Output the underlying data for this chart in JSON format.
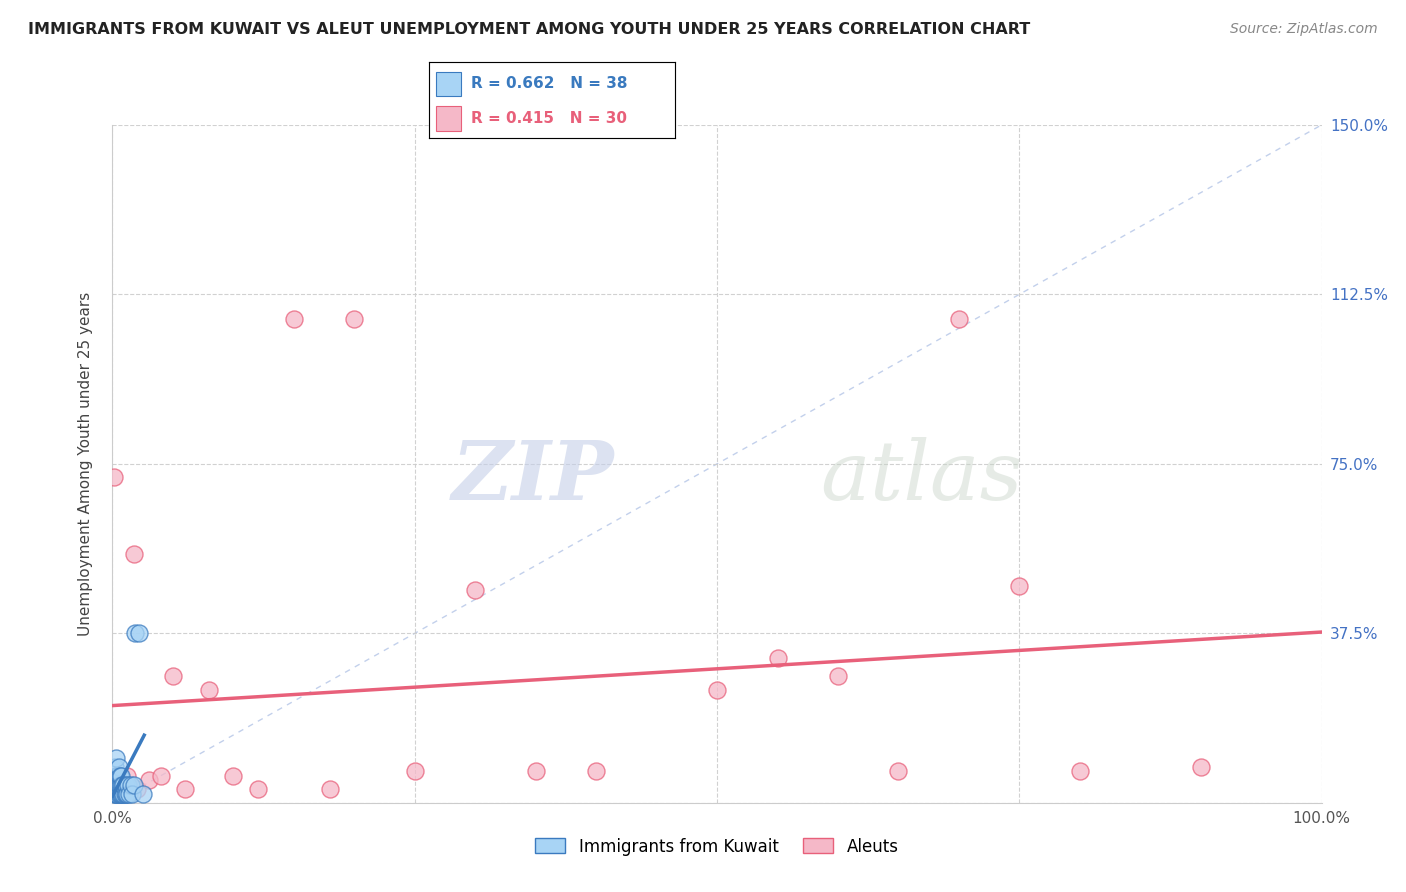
{
  "title": "IMMIGRANTS FROM KUWAIT VS ALEUT UNEMPLOYMENT AMONG YOUTH UNDER 25 YEARS CORRELATION CHART",
  "source": "Source: ZipAtlas.com",
  "ylabel": "Unemployment Among Youth under 25 years",
  "xlim": [
    0.0,
    1.0
  ],
  "ylim": [
    0.0,
    1.5
  ],
  "xticks": [
    0.0,
    0.25,
    0.5,
    0.75,
    1.0
  ],
  "xticklabels": [
    "0.0%",
    "",
    "",
    "",
    "100.0%"
  ],
  "yticks": [
    0.0,
    0.375,
    0.75,
    1.125,
    1.5
  ],
  "yticklabels": [
    "",
    "37.5%",
    "75.0%",
    "112.5%",
    "150.0%"
  ],
  "kuwait_R": 0.662,
  "kuwait_N": 38,
  "aleut_R": 0.415,
  "aleut_N": 30,
  "kuwait_color": "#a8d4f5",
  "aleut_color": "#f5b8c8",
  "kuwait_trend_color": "#3a7abf",
  "aleut_trend_color": "#e8607a",
  "diagonal_color": "#b8c8e8",
  "kuwait_x": [
    0.001,
    0.001,
    0.001,
    0.002,
    0.002,
    0.002,
    0.003,
    0.003,
    0.003,
    0.003,
    0.004,
    0.004,
    0.004,
    0.005,
    0.005,
    0.005,
    0.006,
    0.006,
    0.006,
    0.007,
    0.007,
    0.007,
    0.008,
    0.008,
    0.009,
    0.009,
    0.01,
    0.011,
    0.011,
    0.012,
    0.013,
    0.014,
    0.015,
    0.016,
    0.018,
    0.019,
    0.022,
    0.025
  ],
  "kuwait_y": [
    0.02,
    0.04,
    0.06,
    0.02,
    0.04,
    0.08,
    0.02,
    0.04,
    0.06,
    0.1,
    0.02,
    0.04,
    0.06,
    0.02,
    0.04,
    0.08,
    0.02,
    0.04,
    0.06,
    0.02,
    0.04,
    0.06,
    0.02,
    0.04,
    0.02,
    0.04,
    0.02,
    0.02,
    0.04,
    0.02,
    0.04,
    0.02,
    0.04,
    0.02,
    0.04,
    0.375,
    0.375,
    0.02
  ],
  "aleut_x": [
    0.001,
    0.003,
    0.005,
    0.01,
    0.012,
    0.015,
    0.018,
    0.02,
    0.03,
    0.04,
    0.05,
    0.06,
    0.08,
    0.1,
    0.12,
    0.15,
    0.18,
    0.2,
    0.25,
    0.3,
    0.35,
    0.4,
    0.5,
    0.55,
    0.6,
    0.65,
    0.7,
    0.75,
    0.8,
    0.9
  ],
  "aleut_y": [
    0.72,
    0.03,
    0.05,
    0.03,
    0.06,
    0.03,
    0.55,
    0.03,
    0.05,
    0.06,
    0.28,
    0.03,
    0.25,
    0.06,
    0.03,
    1.07,
    0.03,
    1.07,
    0.07,
    0.47,
    0.07,
    0.07,
    0.25,
    0.32,
    0.28,
    0.07,
    1.07,
    0.48,
    0.07,
    0.08
  ]
}
